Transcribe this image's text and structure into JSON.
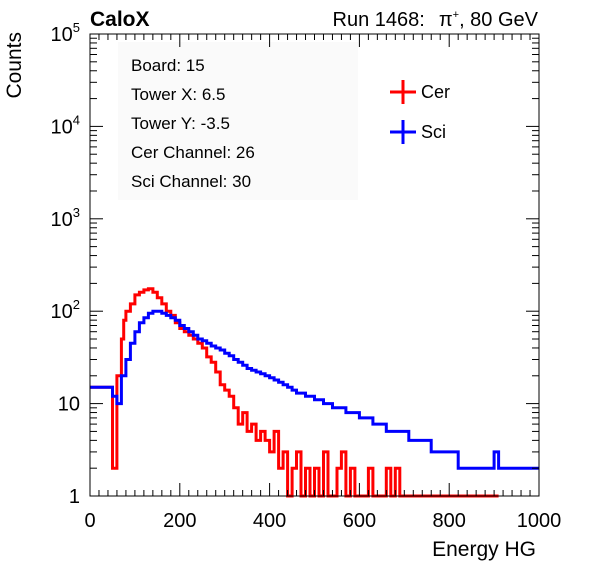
{
  "chart_data": {
    "type": "line",
    "style": "step-histogram",
    "title_left": "CaloX",
    "title_right_run": "Run 1468:",
    "title_right_particle": "π",
    "title_right_charge": "+",
    "title_right_energy": ", 80 GeV",
    "xlabel": "Energy HG",
    "ylabel": "Counts",
    "xlim": [
      0,
      1000
    ],
    "ylim": [
      1,
      100000
    ],
    "y_scale": "log",
    "x_ticks": [
      0,
      200,
      400,
      600,
      800,
      1000
    ],
    "x_tick_labels": [
      "0",
      "200",
      "400",
      "600",
      "800",
      "1000"
    ],
    "y_tick_labels": [
      {
        "value": 1,
        "base": "1",
        "exp": ""
      },
      {
        "value": 10,
        "base": "10",
        "exp": ""
      },
      {
        "value": 100,
        "base": "10",
        "exp": "2"
      },
      {
        "value": 1000,
        "base": "10",
        "exp": "3"
      },
      {
        "value": 10000,
        "base": "10",
        "exp": "4"
      },
      {
        "value": 100000,
        "base": "10",
        "exp": "5"
      }
    ],
    "grid": false,
    "legend_position": "top-right",
    "info_lines": [
      "Board: 15",
      "Tower X: 6.5",
      "Tower Y: -3.5",
      "Cer Channel: 26",
      "Sci Channel: 30"
    ],
    "series": [
      {
        "name": "Cer",
        "color": "#ff0000",
        "x": [
          0,
          50,
          60,
          70,
          75,
          80,
          90,
          100,
          110,
          120,
          130,
          140,
          150,
          160,
          170,
          180,
          190,
          200,
          210,
          220,
          230,
          240,
          250,
          260,
          270,
          280,
          290,
          300,
          310,
          320,
          330,
          340,
          350,
          360,
          370,
          380,
          390,
          400,
          410,
          420,
          430,
          440,
          450,
          460,
          470,
          480,
          490,
          500,
          510,
          520,
          530,
          540,
          550,
          560,
          570,
          580,
          590,
          600,
          610,
          620,
          630,
          640,
          650,
          660,
          670,
          680,
          690,
          700,
          710,
          720,
          730,
          740,
          750,
          760,
          770,
          780,
          790,
          800,
          810,
          820,
          830,
          840,
          850,
          860,
          870,
          880,
          890,
          900
        ],
        "y": [
          15,
          2,
          20,
          50,
          80,
          100,
          120,
          150,
          160,
          170,
          175,
          160,
          140,
          120,
          100,
          90,
          75,
          65,
          60,
          55,
          50,
          45,
          40,
          32,
          28,
          22,
          16,
          14,
          12,
          9,
          6,
          8,
          5,
          6,
          4,
          5,
          4,
          3,
          5,
          2,
          3,
          1,
          2,
          3,
          1,
          2,
          1,
          2,
          1,
          3,
          1,
          1,
          2,
          3,
          1,
          2,
          1,
          1,
          1,
          2,
          1,
          1,
          1,
          2,
          1,
          2,
          1,
          1,
          1,
          1,
          1,
          1,
          1,
          1,
          1,
          1,
          1,
          1,
          1,
          1,
          1,
          1,
          1,
          1,
          1,
          1,
          1,
          1
        ]
      },
      {
        "name": "Sci",
        "color": "#0000ff",
        "x": [
          0,
          50,
          60,
          70,
          80,
          90,
          100,
          110,
          120,
          130,
          140,
          150,
          160,
          170,
          180,
          190,
          200,
          210,
          220,
          230,
          240,
          250,
          260,
          270,
          280,
          290,
          300,
          310,
          320,
          330,
          340,
          350,
          360,
          370,
          380,
          390,
          400,
          410,
          420,
          430,
          440,
          450,
          460,
          470,
          480,
          490,
          500,
          510,
          520,
          530,
          540,
          550,
          560,
          570,
          580,
          590,
          600,
          610,
          620,
          630,
          640,
          650,
          660,
          670,
          680,
          690,
          700,
          710,
          720,
          730,
          740,
          750,
          760,
          770,
          780,
          790,
          800,
          810,
          820,
          830,
          840,
          850,
          860,
          870,
          880,
          890,
          900,
          910,
          920,
          930,
          940,
          950,
          960,
          970,
          980,
          990
        ],
        "y": [
          15,
          12,
          10,
          20,
          30,
          45,
          60,
          75,
          85,
          95,
          100,
          100,
          95,
          90,
          85,
          80,
          70,
          65,
          60,
          55,
          50,
          48,
          45,
          42,
          40,
          38,
          35,
          33,
          30,
          28,
          26,
          24,
          23,
          22,
          21,
          20,
          19,
          18,
          17,
          16,
          15,
          14,
          13,
          13,
          12,
          12,
          11,
          11,
          10,
          10,
          9,
          9,
          9,
          8,
          8,
          8,
          7,
          7,
          7,
          6,
          6,
          6,
          5,
          5,
          5,
          5,
          5,
          4,
          4,
          4,
          4,
          4,
          3,
          3,
          3,
          3,
          3,
          3,
          2,
          2,
          2,
          2,
          2,
          2,
          2,
          2,
          3,
          2,
          2,
          2,
          2,
          2,
          2,
          2,
          2,
          2
        ]
      }
    ]
  }
}
